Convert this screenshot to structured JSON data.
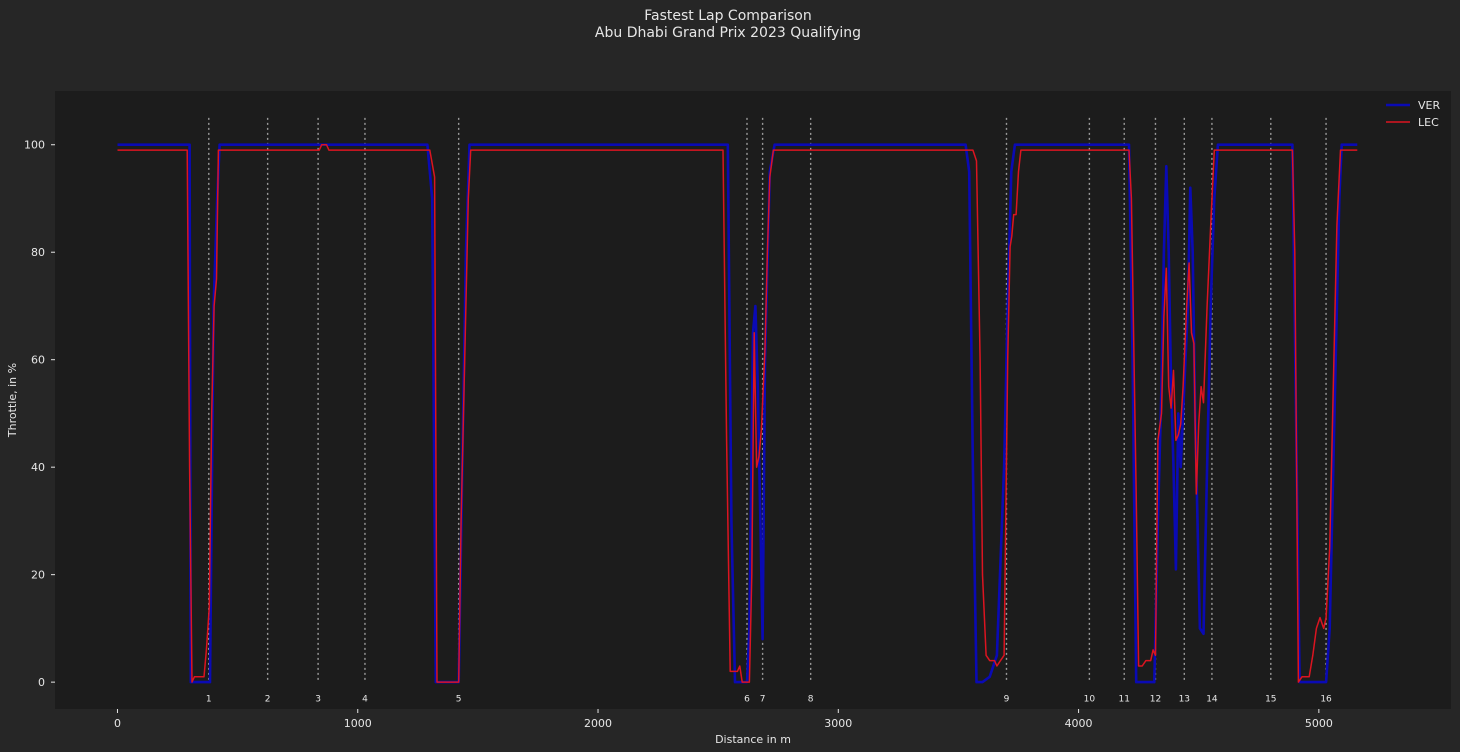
{
  "chart_data": {
    "type": "line",
    "title": "Fastest Lap Comparison",
    "subtitle": "Abu Dhabi Grand Prix 2023 Qualifying",
    "xlabel": "Distance in m",
    "ylabel": "Throttle, in %",
    "xlim": [
      -260,
      5550
    ],
    "ylim": [
      -5,
      110
    ],
    "x_ticks": [
      0,
      1000,
      2000,
      3000,
      4000,
      5000
    ],
    "y_ticks": [
      0,
      20,
      40,
      60,
      80,
      100
    ],
    "grid": false,
    "legend_position": "top-right",
    "colors": {
      "background": "#262626",
      "plot_background": "#1c1c1c",
      "text": "#e6e6e6",
      "corner_line": "#9a9a9a",
      "VER": "#0a0ab4",
      "LEC": "#dc1420"
    },
    "corners": [
      {
        "number": "1",
        "distance": 380
      },
      {
        "number": "2",
        "distance": 625
      },
      {
        "number": "3",
        "distance": 835
      },
      {
        "number": "4",
        "distance": 1030
      },
      {
        "number": "5",
        "distance": 1420
      },
      {
        "number": "6",
        "distance": 2620
      },
      {
        "number": "7",
        "distance": 2685
      },
      {
        "number": "8",
        "distance": 2885
      },
      {
        "number": "9",
        "distance": 3700
      },
      {
        "number": "10",
        "distance": 4045
      },
      {
        "number": "11",
        "distance": 4190
      },
      {
        "number": "12",
        "distance": 4320
      },
      {
        "number": "13",
        "distance": 4440
      },
      {
        "number": "14",
        "distance": 4555
      },
      {
        "number": "15",
        "distance": 4800
      },
      {
        "number": "16",
        "distance": 5030
      }
    ],
    "series": [
      {
        "name": "VER",
        "points": [
          [
            0,
            100
          ],
          [
            300,
            100
          ],
          [
            305,
            0
          ],
          [
            320,
            0
          ],
          [
            380,
            0
          ],
          [
            385,
            0
          ],
          [
            400,
            70
          ],
          [
            415,
            90
          ],
          [
            425,
            100
          ],
          [
            1290,
            100
          ],
          [
            1310,
            90
          ],
          [
            1325,
            0
          ],
          [
            1420,
            0
          ],
          [
            1435,
            40
          ],
          [
            1450,
            80
          ],
          [
            1465,
            100
          ],
          [
            2540,
            100
          ],
          [
            2555,
            30
          ],
          [
            2570,
            0
          ],
          [
            2620,
            0
          ],
          [
            2630,
            10
          ],
          [
            2645,
            65
          ],
          [
            2655,
            70
          ],
          [
            2665,
            55
          ],
          [
            2685,
            8
          ],
          [
            2695,
            60
          ],
          [
            2715,
            95
          ],
          [
            2735,
            100
          ],
          [
            3530,
            100
          ],
          [
            3545,
            95
          ],
          [
            3560,
            40
          ],
          [
            3575,
            0
          ],
          [
            3600,
            0
          ],
          [
            3630,
            1
          ],
          [
            3660,
            5
          ],
          [
            3690,
            40
          ],
          [
            3705,
            70
          ],
          [
            3720,
            95
          ],
          [
            3735,
            100
          ],
          [
            4210,
            100
          ],
          [
            4225,
            60
          ],
          [
            4240,
            0
          ],
          [
            4300,
            0
          ],
          [
            4315,
            0
          ],
          [
            4330,
            30
          ],
          [
            4345,
            55
          ],
          [
            4355,
            80
          ],
          [
            4365,
            96
          ],
          [
            4375,
            80
          ],
          [
            4385,
            55
          ],
          [
            4395,
            40
          ],
          [
            4405,
            21
          ],
          [
            4415,
            50
          ],
          [
            4425,
            40
          ],
          [
            4440,
            55
          ],
          [
            4455,
            70
          ],
          [
            4465,
            92
          ],
          [
            4475,
            80
          ],
          [
            4485,
            50
          ],
          [
            4495,
            30
          ],
          [
            4505,
            10
          ],
          [
            4520,
            9
          ],
          [
            4535,
            40
          ],
          [
            4550,
            70
          ],
          [
            4565,
            90
          ],
          [
            4580,
            100
          ],
          [
            4890,
            100
          ],
          [
            4905,
            50
          ],
          [
            4920,
            0
          ],
          [
            5030,
            0
          ],
          [
            5045,
            10
          ],
          [
            5060,
            40
          ],
          [
            5075,
            70
          ],
          [
            5085,
            90
          ],
          [
            5095,
            100
          ],
          [
            5160,
            100
          ]
        ]
      },
      {
        "name": "LEC",
        "points": [
          [
            0,
            99
          ],
          [
            290,
            99
          ],
          [
            300,
            40
          ],
          [
            310,
            0
          ],
          [
            320,
            1
          ],
          [
            350,
            1
          ],
          [
            360,
            1
          ],
          [
            370,
            6
          ],
          [
            382,
            14
          ],
          [
            392,
            50
          ],
          [
            402,
            70
          ],
          [
            412,
            75
          ],
          [
            420,
            99
          ],
          [
            840,
            99
          ],
          [
            850,
            100
          ],
          [
            870,
            100
          ],
          [
            880,
            99
          ],
          [
            1300,
            99
          ],
          [
            1320,
            94
          ],
          [
            1330,
            0
          ],
          [
            1420,
            0
          ],
          [
            1430,
            30
          ],
          [
            1445,
            60
          ],
          [
            1460,
            90
          ],
          [
            1470,
            99
          ],
          [
            2520,
            99
          ],
          [
            2535,
            45
          ],
          [
            2550,
            2
          ],
          [
            2570,
            2
          ],
          [
            2580,
            2
          ],
          [
            2590,
            3
          ],
          [
            2600,
            0
          ],
          [
            2615,
            0
          ],
          [
            2630,
            0
          ],
          [
            2640,
            20
          ],
          [
            2650,
            65
          ],
          [
            2660,
            40
          ],
          [
            2670,
            42
          ],
          [
            2680,
            47
          ],
          [
            2695,
            62
          ],
          [
            2705,
            80
          ],
          [
            2715,
            94
          ],
          [
            2730,
            99
          ],
          [
            3560,
            99
          ],
          [
            3575,
            97
          ],
          [
            3590,
            60
          ],
          [
            3600,
            20
          ],
          [
            3615,
            5
          ],
          [
            3630,
            4
          ],
          [
            3650,
            4
          ],
          [
            3660,
            3
          ],
          [
            3675,
            4
          ],
          [
            3690,
            5
          ],
          [
            3705,
            60
          ],
          [
            3715,
            81
          ],
          [
            3722,
            83
          ],
          [
            3730,
            87
          ],
          [
            3740,
            87
          ],
          [
            3750,
            95
          ],
          [
            3760,
            99
          ],
          [
            4210,
            99
          ],
          [
            4220,
            90
          ],
          [
            4240,
            35
          ],
          [
            4250,
            3
          ],
          [
            4265,
            3
          ],
          [
            4280,
            4
          ],
          [
            4300,
            4
          ],
          [
            4310,
            6
          ],
          [
            4320,
            5
          ],
          [
            4330,
            45
          ],
          [
            4345,
            50
          ],
          [
            4355,
            68
          ],
          [
            4365,
            77
          ],
          [
            4375,
            55
          ],
          [
            4385,
            51
          ],
          [
            4395,
            58
          ],
          [
            4405,
            45
          ],
          [
            4415,
            46
          ],
          [
            4425,
            48
          ],
          [
            4435,
            55
          ],
          [
            4450,
            70
          ],
          [
            4460,
            78
          ],
          [
            4470,
            65
          ],
          [
            4480,
            63
          ],
          [
            4490,
            35
          ],
          [
            4500,
            48
          ],
          [
            4510,
            55
          ],
          [
            4520,
            52
          ],
          [
            4535,
            70
          ],
          [
            4550,
            85
          ],
          [
            4565,
            99
          ],
          [
            4890,
            99
          ],
          [
            4900,
            80
          ],
          [
            4915,
            0
          ],
          [
            4930,
            1
          ],
          [
            4950,
            1
          ],
          [
            4960,
            1
          ],
          [
            4975,
            5
          ],
          [
            4990,
            10
          ],
          [
            5005,
            12
          ],
          [
            5020,
            10
          ],
          [
            5030,
            12
          ],
          [
            5045,
            25
          ],
          [
            5060,
            55
          ],
          [
            5075,
            85
          ],
          [
            5090,
            99
          ],
          [
            5160,
            99
          ]
        ]
      }
    ]
  }
}
